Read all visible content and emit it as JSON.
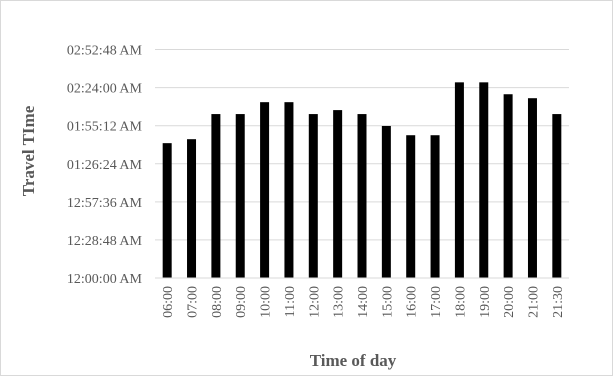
{
  "chart_data": {
    "type": "bar",
    "title": "",
    "xlabel": "Time of day",
    "ylabel": "Travel TIme",
    "categories": [
      "06:00",
      "07:00",
      "08:00",
      "09:00",
      "10:00",
      "11:00",
      "12:00",
      "13:00",
      "14:00",
      "15:00",
      "16:00",
      "17:00",
      "18:00",
      "19:00",
      "20:00",
      "21:00",
      "21:30"
    ],
    "values_seconds": [
      6120,
      6300,
      7440,
      7440,
      7980,
      7980,
      7440,
      7620,
      7440,
      6900,
      6480,
      6480,
      8880,
      8880,
      8340,
      8160,
      7440
    ],
    "y_ticks_seconds": [
      0,
      1728,
      3456,
      5184,
      6912,
      8640,
      10368
    ],
    "y_tick_labels": [
      "12:00:00 AM",
      "12:28:48 AM",
      "12:57:36 AM",
      "01:26:24 AM",
      "01:55:12 AM",
      "02:24:00 AM",
      "02:52:48 AM"
    ],
    "ylim_seconds": [
      0,
      11664
    ],
    "grid": true,
    "legend": "none",
    "bar_color": "#000000",
    "grid_color": "#d9d9d9",
    "text_color": "#595959"
  }
}
